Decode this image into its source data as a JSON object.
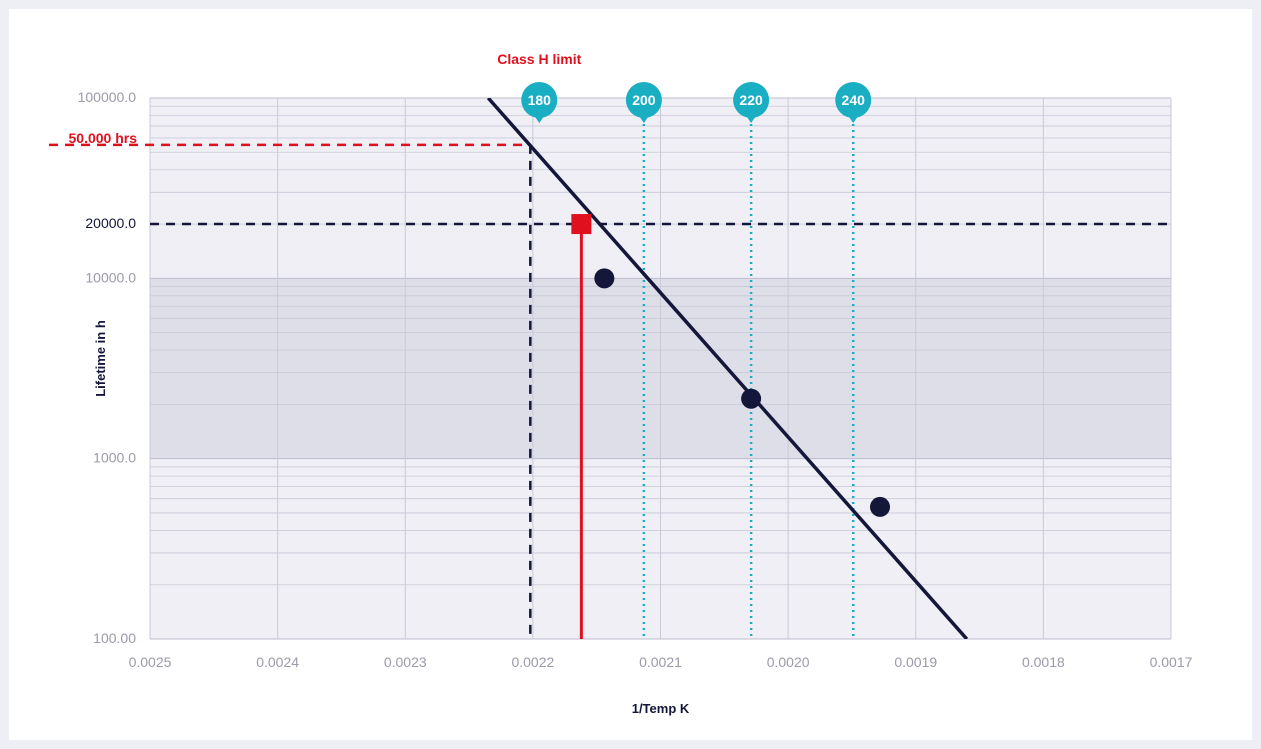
{
  "chart_data": {
    "type": "line",
    "xlabel": "1/Temp K",
    "ylabel": "Lifetime in h",
    "x_ticks": [
      "0.0025",
      "0.0024",
      "0.0023",
      "0.0022",
      "0.0021",
      "0.0020",
      "0.0019",
      "0.0018",
      "0.0017"
    ],
    "x_tick_values": [
      0.0025,
      0.0024,
      0.0023,
      0.0022,
      0.0021,
      0.002,
      0.0019,
      0.0018,
      0.0017
    ],
    "y_ticks": [
      "100000.0",
      "10000.0",
      "1000.0",
      "100.00"
    ],
    "y_tick_values": [
      100000,
      10000,
      1000,
      100
    ],
    "xlim": [
      0.0025,
      0.0017
    ],
    "ylim": [
      100,
      100000
    ],
    "y_scale": "log",
    "x_reversed": true,
    "grid": true,
    "shaded_band": {
      "y_range": [
        1000,
        10000
      ],
      "color": "#dedee9"
    },
    "line": {
      "color": "#14163a",
      "x": [
        0.002235,
        0.00186
      ],
      "y": [
        100000,
        100
      ]
    },
    "points": {
      "color": "#14163a",
      "x": [
        0.002144,
        0.002029,
        0.001928
      ],
      "y": [
        10000,
        2150,
        540
      ]
    },
    "dashed_20000": {
      "label": "20000.0",
      "y": 20000,
      "color": "#14163a"
    },
    "class_h_limit": {
      "label": "Class H limit",
      "x": 0.002202,
      "y": 55000,
      "hours_label": "50.000 hrs",
      "color": "#e0101f"
    },
    "red_marker": {
      "x": 0.002162,
      "y": 20000,
      "color": "#e0101f"
    },
    "temperature_markers": [
      {
        "label": "180",
        "x": 0.002195,
        "dotted": false
      },
      {
        "label": "200",
        "x": 0.002113,
        "dotted": true
      },
      {
        "label": "220",
        "x": 0.002029,
        "dotted": true
      },
      {
        "label": "240",
        "x": 0.001949,
        "dotted": true
      }
    ],
    "marker_color": "#1aaec3"
  }
}
